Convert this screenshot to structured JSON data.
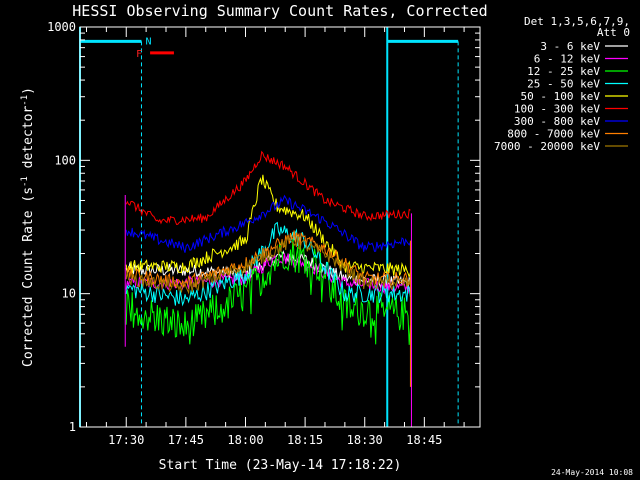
{
  "chart_data": {
    "type": "line",
    "title": "HESSI Observing Summary Count Rates, Corrected",
    "xlabel": "Start Time (23-May-14 17:18:22)",
    "ylabel": "Corrected Count Rate (s⁻¹ detector⁻¹)",
    "ylabel_main": "Corrected Count Rate (s",
    "ylabel_exp1": "-1",
    "ylabel_mid": " detector",
    "ylabel_exp2": "-1",
    "ylabel_end": ")",
    "yscale": "log",
    "ylim": [
      1,
      1000
    ],
    "xlim": [
      "17:18:22",
      "18:59:00"
    ],
    "y_ticks": [
      "1",
      "10",
      "100",
      "1000"
    ],
    "x_ticks": [
      "17:30",
      "17:45",
      "18:00",
      "18:15",
      "18:30",
      "18:45"
    ],
    "detector_info": [
      "Det 1,3,5,6,7,9,",
      "Att 0"
    ],
    "footer_date": "24-May-2014 10:08",
    "flags": {
      "night_label": "N",
      "flare_label": "F"
    },
    "night_intervals": [
      {
        "start": "17:18:22",
        "end": "17:33:50"
      },
      {
        "start": "18:35:40",
        "end": "18:53:30"
      }
    ],
    "night_cyan_lines": [
      "17:18:22",
      "18:35:40"
    ],
    "night_dashed_lines": [
      "17:33:50",
      "18:53:30"
    ],
    "flare_interval": {
      "start": "17:36:00",
      "end": "17:42:00"
    },
    "data_interval": {
      "start": "17:30:00",
      "end": "18:41:30"
    },
    "series": [
      {
        "name": "3 - 6 keV",
        "color": "#ffffff",
        "points": [
          [
            "17:30",
            15
          ],
          [
            "17:45",
            15
          ],
          [
            "18:00",
            14
          ],
          [
            "18:08",
            19
          ],
          [
            "18:15",
            18
          ],
          [
            "18:25",
            13
          ],
          [
            "18:41",
            12
          ]
        ]
      },
      {
        "name": "6 - 12 keV",
        "color": "#ff00ff",
        "points": [
          [
            "17:30",
            12
          ],
          [
            "17:45",
            12
          ],
          [
            "18:00",
            13
          ],
          [
            "18:08",
            19
          ],
          [
            "18:15",
            17
          ],
          [
            "18:25",
            12
          ],
          [
            "18:41",
            11
          ]
        ]
      },
      {
        "name": "12 - 25 keV",
        "color": "#00ff00",
        "points": [
          [
            "17:30",
            8
          ],
          [
            "17:45",
            5.5
          ],
          [
            "18:00",
            10
          ],
          [
            "18:10",
            21
          ],
          [
            "18:18",
            17
          ],
          [
            "18:25",
            8
          ],
          [
            "18:41",
            7
          ]
        ]
      },
      {
        "name": "25 - 50 keV",
        "color": "#00ffff",
        "points": [
          [
            "17:30",
            11
          ],
          [
            "17:45",
            9
          ],
          [
            "18:00",
            14
          ],
          [
            "18:08",
            30
          ],
          [
            "18:15",
            25
          ],
          [
            "18:25",
            10
          ],
          [
            "18:41",
            10
          ]
        ]
      },
      {
        "name": "50 - 100 keV",
        "color": "#ffff00",
        "points": [
          [
            "17:30",
            16
          ],
          [
            "17:45",
            16
          ],
          [
            "18:00",
            25
          ],
          [
            "18:04",
            73
          ],
          [
            "18:08",
            45
          ],
          [
            "18:15",
            38
          ],
          [
            "18:25",
            16
          ],
          [
            "18:41",
            15
          ]
        ]
      },
      {
        "name": "100 - 300 keV",
        "color": "#ff0000",
        "points": [
          [
            "17:30",
            50
          ],
          [
            "17:38",
            35
          ],
          [
            "17:50",
            37
          ],
          [
            "18:00",
            70
          ],
          [
            "18:04",
            110
          ],
          [
            "18:10",
            90
          ],
          [
            "18:20",
            50
          ],
          [
            "18:30",
            38
          ],
          [
            "18:41",
            40
          ]
        ]
      },
      {
        "name": "300 - 800 keV",
        "color": "#0000ff",
        "points": [
          [
            "17:30",
            30
          ],
          [
            "17:45",
            22
          ],
          [
            "18:00",
            34
          ],
          [
            "18:10",
            50
          ],
          [
            "18:20",
            35
          ],
          [
            "18:30",
            22
          ],
          [
            "18:41",
            25
          ]
        ]
      },
      {
        "name": "800 - 7000 keV",
        "color": "#ff7f00",
        "points": [
          [
            "17:30",
            14
          ],
          [
            "17:45",
            12
          ],
          [
            "18:00",
            17
          ],
          [
            "18:12",
            27
          ],
          [
            "18:20",
            22
          ],
          [
            "18:30",
            13
          ],
          [
            "18:41",
            13
          ]
        ]
      },
      {
        "name": "7000 - 20000 keV",
        "color": "#a07800",
        "points": [
          [
            "17:30",
            13
          ],
          [
            "17:45",
            11
          ],
          [
            "18:00",
            16
          ],
          [
            "18:12",
            25
          ],
          [
            "18:20",
            20
          ],
          [
            "18:30",
            12
          ],
          [
            "18:41",
            12
          ]
        ]
      }
    ]
  }
}
